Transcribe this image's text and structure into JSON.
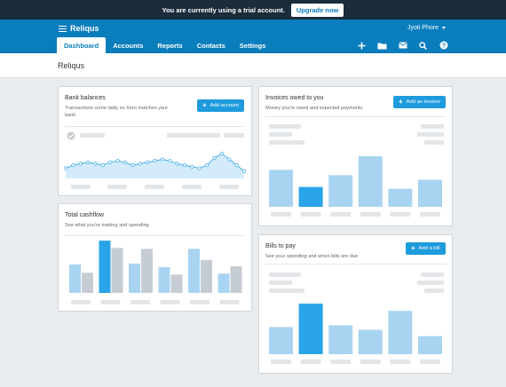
{
  "trial": {
    "message": "You are currently using a trial account.",
    "upgrade_label": "Upgrade now"
  },
  "header": {
    "org_name": "Reliqus",
    "user_name": "Jyoti Phore",
    "tabs": [
      {
        "label": "Dashboard",
        "active": true
      },
      {
        "label": "Accounts"
      },
      {
        "label": "Reports"
      },
      {
        "label": "Contacts"
      },
      {
        "label": "Settings"
      }
    ],
    "icons": [
      "plus-icon",
      "folder-icon",
      "mail-icon",
      "search-icon",
      "help-icon"
    ]
  },
  "page": {
    "title": "Reliqus"
  },
  "cards": {
    "bank": {
      "title": "Bank balances",
      "subtitle_1": "Transactions come daily so Xero matches your",
      "subtitle_2": "bank",
      "button_label": "Add account"
    },
    "invoices": {
      "title": "Invoices owed to you",
      "subtitle": "Money you're owed and expected payments",
      "button_label": "Add an invoice"
    },
    "cashflow": {
      "title": "Total cashflow",
      "subtitle": "See what you're making and spending"
    },
    "bills": {
      "title": "Bills to pay",
      "subtitle": "See your spending and when bills are due",
      "button_label": "Add a bill"
    }
  },
  "colors": {
    "brand": "#0a7dbd",
    "dark": "#1b2c3b",
    "accent": "#1e9bdc",
    "bar_light": "#a8d4f2",
    "bar_dark": "#2aa4e8",
    "bar_gray": "#c5ccd3"
  },
  "chart_data": [
    {
      "type": "area",
      "name": "bank-balances",
      "values": [
        7,
        9,
        10,
        11,
        10,
        9,
        11,
        12,
        11,
        9,
        10,
        11,
        12,
        13,
        12,
        10,
        9,
        8,
        7,
        9,
        14,
        17,
        13,
        9,
        5
      ]
    },
    {
      "type": "bar",
      "name": "invoices-owed",
      "values": [
        41,
        22,
        35,
        56,
        20,
        30
      ],
      "highlight_index": 1
    },
    {
      "type": "bar",
      "name": "total-cashflow",
      "series": [
        {
          "name": "in",
          "values": [
            31,
            57,
            32,
            28,
            48,
            21
          ]
        },
        {
          "name": "out",
          "values": [
            22,
            49,
            48,
            20,
            36,
            29
          ]
        }
      ],
      "highlight_index": 1
    },
    {
      "type": "bar",
      "name": "bills-to-pay",
      "values": [
        30,
        56,
        32,
        27,
        48,
        20
      ],
      "highlight_index": 1
    }
  ]
}
